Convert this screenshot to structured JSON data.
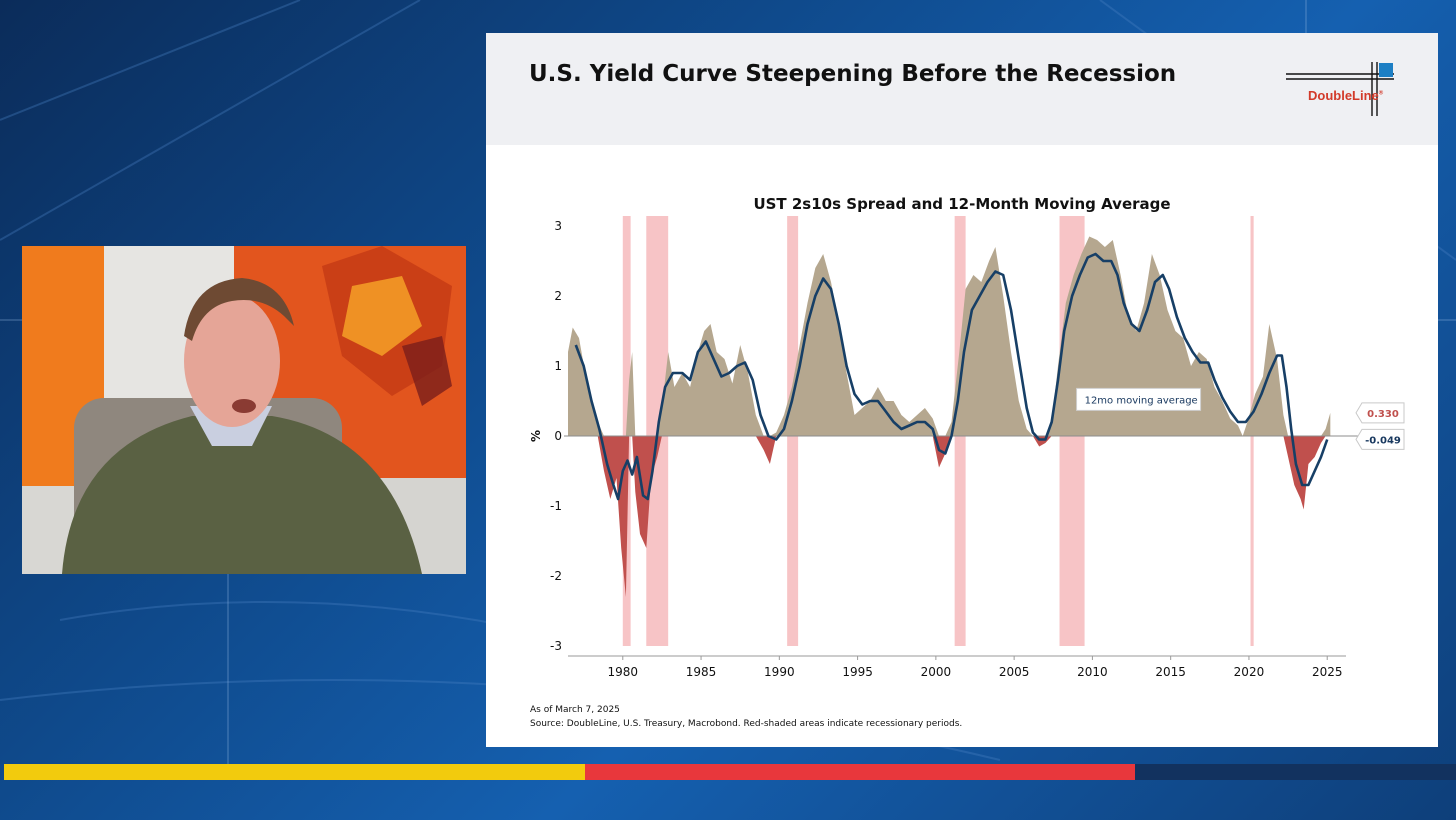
{
  "slide": {
    "title": "U.S. Yield Curve Steepening Before the Recession",
    "logo_text": "DoubleLine",
    "logo_mark": "®",
    "as_of": "As of March 7, 2025",
    "source": "Source: DoubleLine, U.S. Treasury, Macrobond. Red-shaded areas indicate recessionary periods."
  },
  "chart_data": {
    "type": "area",
    "title": "UST 2s10s Spread and 12-Month Moving Average",
    "ylabel": "%",
    "xlabel": "",
    "ylim": [
      -3,
      3
    ],
    "xlim": [
      1976.5,
      2026.2
    ],
    "y_ticks": [
      "3",
      "2",
      "1",
      "0",
      "-1",
      "-2",
      "-3"
    ],
    "x_ticks": [
      "1980",
      "1985",
      "1990",
      "1995",
      "2000",
      "2005",
      "2010",
      "2015",
      "2020",
      "2025"
    ],
    "recessions": [
      [
        1980.0,
        1980.5
      ],
      [
        1981.5,
        1982.9
      ],
      [
        1990.5,
        1991.2
      ],
      [
        2001.2,
        2001.9
      ],
      [
        2007.9,
        2009.5
      ],
      [
        2020.1,
        2020.3
      ]
    ],
    "annotation": "12mo moving average",
    "latest_spread_label": "0.330",
    "latest_ma_label": "-0.049",
    "colors": {
      "positive": "#b5a78f",
      "negative": "#c0504d",
      "ma_line": "#173f66",
      "recession": "#f7c4c6"
    },
    "series": [
      {
        "values": [
          [
            1976.5,
            1.2
          ],
          [
            1976.8,
            1.55
          ],
          [
            1977.2,
            1.4
          ],
          [
            1977.6,
            0.9
          ],
          [
            1978.0,
            0.5
          ],
          [
            1978.4,
            0.2
          ],
          [
            1978.8,
            -0.5
          ],
          [
            1979.2,
            -0.9
          ],
          [
            1979.6,
            -0.6
          ],
          [
            1979.9,
            -1.6
          ],
          [
            1980.2,
            -2.3
          ],
          [
            1980.4,
            0.8
          ],
          [
            1980.6,
            1.2
          ],
          [
            1980.8,
            -0.8
          ],
          [
            1981.1,
            -1.4
          ],
          [
            1981.5,
            -1.6
          ],
          [
            1981.8,
            -0.6
          ],
          [
            1982.2,
            -0.3
          ],
          [
            1982.5,
            0.4
          ],
          [
            1982.9,
            1.2
          ],
          [
            1983.3,
            0.7
          ],
          [
            1983.8,
            0.9
          ],
          [
            1984.3,
            0.7
          ],
          [
            1984.8,
            1.2
          ],
          [
            1985.2,
            1.5
          ],
          [
            1985.6,
            1.6
          ],
          [
            1986.0,
            1.2
          ],
          [
            1986.5,
            1.1
          ],
          [
            1987.0,
            0.75
          ],
          [
            1987.5,
            1.3
          ],
          [
            1988.0,
            0.9
          ],
          [
            1988.5,
            0.3
          ],
          [
            1989.0,
            -0.2
          ],
          [
            1989.4,
            -0.4
          ],
          [
            1989.8,
            0.05
          ],
          [
            1990.3,
            0.3
          ],
          [
            1990.8,
            0.7
          ],
          [
            1991.3,
            1.3
          ],
          [
            1991.8,
            1.9
          ],
          [
            1992.3,
            2.4
          ],
          [
            1992.8,
            2.6
          ],
          [
            1993.3,
            2.2
          ],
          [
            1993.8,
            1.6
          ],
          [
            1994.3,
            0.9
          ],
          [
            1994.8,
            0.3
          ],
          [
            1995.3,
            0.4
          ],
          [
            1995.8,
            0.5
          ],
          [
            1996.3,
            0.7
          ],
          [
            1996.8,
            0.5
          ],
          [
            1997.3,
            0.5
          ],
          [
            1997.8,
            0.3
          ],
          [
            1998.3,
            0.2
          ],
          [
            1998.8,
            0.3
          ],
          [
            1999.3,
            0.4
          ],
          [
            1999.8,
            0.25
          ],
          [
            2000.2,
            -0.45
          ],
          [
            2000.6,
            -0.25
          ],
          [
            2001.0,
            0.2
          ],
          [
            2001.5,
            1.2
          ],
          [
            2001.9,
            2.1
          ],
          [
            2002.4,
            2.3
          ],
          [
            2002.9,
            2.2
          ],
          [
            2003.4,
            2.5
          ],
          [
            2003.8,
            2.7
          ],
          [
            2004.3,
            2.0
          ],
          [
            2004.8,
            1.2
          ],
          [
            2005.3,
            0.5
          ],
          [
            2005.8,
            0.1
          ],
          [
            2006.2,
            0.0
          ],
          [
            2006.6,
            -0.15
          ],
          [
            2007.0,
            -0.1
          ],
          [
            2007.4,
            0.2
          ],
          [
            2007.8,
            1.0
          ],
          [
            2008.3,
            1.9
          ],
          [
            2008.8,
            2.3
          ],
          [
            2009.3,
            2.6
          ],
          [
            2009.8,
            2.85
          ],
          [
            2010.3,
            2.8
          ],
          [
            2010.8,
            2.7
          ],
          [
            2011.3,
            2.8
          ],
          [
            2011.8,
            2.3
          ],
          [
            2012.3,
            1.7
          ],
          [
            2012.8,
            1.5
          ],
          [
            2013.3,
            1.9
          ],
          [
            2013.8,
            2.6
          ],
          [
            2014.3,
            2.3
          ],
          [
            2014.8,
            1.8
          ],
          [
            2015.3,
            1.5
          ],
          [
            2015.8,
            1.4
          ],
          [
            2016.3,
            1.0
          ],
          [
            2016.8,
            1.2
          ],
          [
            2017.3,
            1.1
          ],
          [
            2017.8,
            0.7
          ],
          [
            2018.3,
            0.5
          ],
          [
            2018.8,
            0.25
          ],
          [
            2019.3,
            0.15
          ],
          [
            2019.6,
            0.0
          ],
          [
            2019.9,
            0.2
          ],
          [
            2020.4,
            0.6
          ],
          [
            2020.9,
            0.85
          ],
          [
            2021.3,
            1.6
          ],
          [
            2021.8,
            1.1
          ],
          [
            2022.2,
            0.3
          ],
          [
            2022.5,
            -0.3
          ],
          [
            2022.9,
            -0.7
          ],
          [
            2023.3,
            -0.9
          ],
          [
            2023.5,
            -1.05
          ],
          [
            2023.8,
            -0.4
          ],
          [
            2024.2,
            -0.3
          ],
          [
            2024.6,
            -0.1
          ],
          [
            2024.9,
            0.1
          ],
          [
            2025.2,
            0.33
          ]
        ]
      },
      {
        "name": "12mo moving average",
        "values": [
          [
            1977.0,
            1.3
          ],
          [
            1977.5,
            1.0
          ],
          [
            1978.0,
            0.5
          ],
          [
            1978.5,
            0.1
          ],
          [
            1979.0,
            -0.4
          ],
          [
            1979.4,
            -0.7
          ],
          [
            1979.7,
            -0.9
          ],
          [
            1980.0,
            -0.5
          ],
          [
            1980.3,
            -0.35
          ],
          [
            1980.6,
            -0.55
          ],
          [
            1980.9,
            -0.3
          ],
          [
            1981.3,
            -0.85
          ],
          [
            1981.6,
            -0.9
          ],
          [
            1981.9,
            -0.5
          ],
          [
            1982.3,
            0.2
          ],
          [
            1982.7,
            0.7
          ],
          [
            1983.2,
            0.9
          ],
          [
            1983.8,
            0.9
          ],
          [
            1984.3,
            0.8
          ],
          [
            1984.8,
            1.2
          ],
          [
            1985.3,
            1.35
          ],
          [
            1985.8,
            1.1
          ],
          [
            1986.3,
            0.85
          ],
          [
            1986.8,
            0.9
          ],
          [
            1987.3,
            1.0
          ],
          [
            1987.8,
            1.05
          ],
          [
            1988.3,
            0.8
          ],
          [
            1988.8,
            0.3
          ],
          [
            1989.3,
            0.0
          ],
          [
            1989.8,
            -0.05
          ],
          [
            1990.3,
            0.1
          ],
          [
            1990.8,
            0.5
          ],
          [
            1991.3,
            1.0
          ],
          [
            1991.8,
            1.6
          ],
          [
            1992.3,
            2.0
          ],
          [
            1992.8,
            2.25
          ],
          [
            1993.3,
            2.1
          ],
          [
            1993.8,
            1.6
          ],
          [
            1994.3,
            1.0
          ],
          [
            1994.8,
            0.6
          ],
          [
            1995.3,
            0.45
          ],
          [
            1995.8,
            0.5
          ],
          [
            1996.3,
            0.5
          ],
          [
            1996.8,
            0.35
          ],
          [
            1997.3,
            0.2
          ],
          [
            1997.8,
            0.1
          ],
          [
            1998.3,
            0.15
          ],
          [
            1998.8,
            0.2
          ],
          [
            1999.3,
            0.2
          ],
          [
            1999.8,
            0.1
          ],
          [
            2000.2,
            -0.2
          ],
          [
            2000.6,
            -0.25
          ],
          [
            2001.0,
            0.0
          ],
          [
            2001.4,
            0.5
          ],
          [
            2001.8,
            1.2
          ],
          [
            2002.3,
            1.8
          ],
          [
            2002.8,
            2.0
          ],
          [
            2003.3,
            2.2
          ],
          [
            2003.8,
            2.35
          ],
          [
            2004.3,
            2.3
          ],
          [
            2004.8,
            1.8
          ],
          [
            2005.3,
            1.1
          ],
          [
            2005.8,
            0.4
          ],
          [
            2006.2,
            0.05
          ],
          [
            2006.6,
            -0.05
          ],
          [
            2007.0,
            -0.05
          ],
          [
            2007.4,
            0.2
          ],
          [
            2007.8,
            0.8
          ],
          [
            2008.2,
            1.5
          ],
          [
            2008.7,
            2.0
          ],
          [
            2009.2,
            2.3
          ],
          [
            2009.7,
            2.55
          ],
          [
            2010.2,
            2.6
          ],
          [
            2010.7,
            2.5
          ],
          [
            2011.2,
            2.5
          ],
          [
            2011.6,
            2.3
          ],
          [
            2012.0,
            1.9
          ],
          [
            2012.5,
            1.6
          ],
          [
            2013.0,
            1.5
          ],
          [
            2013.5,
            1.8
          ],
          [
            2014.0,
            2.2
          ],
          [
            2014.5,
            2.3
          ],
          [
            2014.9,
            2.1
          ],
          [
            2015.4,
            1.7
          ],
          [
            2015.9,
            1.4
          ],
          [
            2016.4,
            1.2
          ],
          [
            2016.9,
            1.05
          ],
          [
            2017.4,
            1.05
          ],
          [
            2017.8,
            0.8
          ],
          [
            2018.3,
            0.55
          ],
          [
            2018.8,
            0.35
          ],
          [
            2019.3,
            0.2
          ],
          [
            2019.8,
            0.2
          ],
          [
            2020.3,
            0.35
          ],
          [
            2020.8,
            0.6
          ],
          [
            2021.3,
            0.9
          ],
          [
            2021.8,
            1.15
          ],
          [
            2022.1,
            1.15
          ],
          [
            2022.4,
            0.7
          ],
          [
            2022.7,
            0.1
          ],
          [
            2023.0,
            -0.4
          ],
          [
            2023.4,
            -0.7
          ],
          [
            2023.8,
            -0.7
          ],
          [
            2024.2,
            -0.5
          ],
          [
            2024.6,
            -0.3
          ],
          [
            2025.0,
            -0.05
          ]
        ]
      }
    ]
  }
}
